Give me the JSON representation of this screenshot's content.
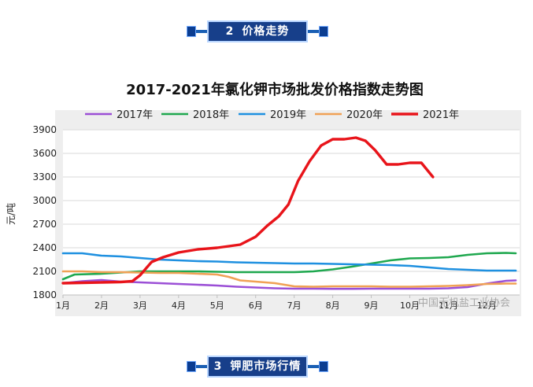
{
  "sections": {
    "top": {
      "number": "2",
      "title": "价格走势"
    },
    "bottom": {
      "number": "3",
      "title": "钾肥市场行情"
    }
  },
  "watermark": "中国无机盐工业协会",
  "chart_data": {
    "type": "line",
    "title": "2017-2021年氯化钾市场批发价格指数走势图",
    "ylabel": "元/吨",
    "xlabel": "",
    "ylim": [
      1800,
      3900
    ],
    "yticks": [
      1800,
      2100,
      2400,
      2700,
      3000,
      3300,
      3600,
      3900
    ],
    "xlim": [
      1,
      12.85
    ],
    "xticks": [
      {
        "v": 1,
        "label": "1月"
      },
      {
        "v": 2,
        "label": "2月"
      },
      {
        "v": 3,
        "label": "3月"
      },
      {
        "v": 4,
        "label": "4月"
      },
      {
        "v": 5,
        "label": "5月"
      },
      {
        "v": 6,
        "label": "6月"
      },
      {
        "v": 7,
        "label": "7月"
      },
      {
        "v": 8,
        "label": "8月"
      },
      {
        "v": 9,
        "label": "9月"
      },
      {
        "v": 10,
        "label": "10月"
      },
      {
        "v": 11,
        "label": "11月"
      },
      {
        "v": 12,
        "label": "12月"
      }
    ],
    "grid": true,
    "legend_position": "top",
    "series": [
      {
        "name": "2017年",
        "color": "#9b4fd6",
        "x": [
          1,
          1.5,
          2,
          2.5,
          3,
          3.5,
          4,
          4.5,
          5,
          5.5,
          6,
          6.5,
          7,
          7.5,
          8,
          8.5,
          9,
          9.5,
          10,
          10.5,
          11,
          11.5,
          12,
          12.5,
          12.75
        ],
        "values": [
          1950,
          1975,
          1990,
          1970,
          1960,
          1950,
          1940,
          1930,
          1920,
          1905,
          1895,
          1885,
          1880,
          1880,
          1878,
          1878,
          1880,
          1880,
          1880,
          1880,
          1885,
          1900,
          1945,
          1980,
          1985
        ]
      },
      {
        "name": "2018年",
        "color": "#1fa84f",
        "x": [
          1,
          1.3,
          2,
          2.5,
          3,
          3.5,
          4,
          4.5,
          5,
          5.5,
          6,
          6.5,
          7,
          7.5,
          8,
          8.5,
          9,
          9.5,
          10,
          10.5,
          11,
          11.5,
          12,
          12.5,
          12.75
        ],
        "values": [
          2000,
          2060,
          2070,
          2085,
          2100,
          2100,
          2100,
          2100,
          2095,
          2090,
          2090,
          2090,
          2090,
          2100,
          2125,
          2160,
          2200,
          2240,
          2265,
          2270,
          2280,
          2310,
          2330,
          2335,
          2330
        ]
      },
      {
        "name": "2019年",
        "color": "#1e90e0",
        "x": [
          1,
          1.5,
          2,
          2.5,
          3,
          3.5,
          4,
          4.5,
          5,
          5.5,
          6,
          6.5,
          7,
          7.5,
          8,
          8.5,
          9,
          9.5,
          10,
          10.5,
          11,
          11.5,
          12,
          12.5,
          12.75
        ],
        "values": [
          2330,
          2330,
          2300,
          2290,
          2270,
          2250,
          2240,
          2230,
          2225,
          2215,
          2210,
          2205,
          2200,
          2200,
          2195,
          2190,
          2185,
          2180,
          2170,
          2150,
          2130,
          2120,
          2110,
          2110,
          2110
        ]
      },
      {
        "name": "2020年",
        "color": "#f0a155",
        "x": [
          1,
          1.5,
          2,
          2.5,
          3,
          3.5,
          4,
          4.5,
          5,
          5.3,
          5.6,
          6,
          6.5,
          7,
          7.5,
          8,
          8.5,
          9,
          9.5,
          10,
          10.5,
          11,
          11.5,
          12,
          12.5,
          12.75
        ],
        "values": [
          2100,
          2100,
          2090,
          2090,
          2085,
          2080,
          2080,
          2070,
          2060,
          2030,
          1985,
          1970,
          1950,
          1910,
          1905,
          1910,
          1910,
          1910,
          1905,
          1905,
          1910,
          1915,
          1925,
          1940,
          1945,
          1945
        ]
      },
      {
        "name": "2021年",
        "color": "#e8141a",
        "x": [
          1,
          1.5,
          2,
          2.5,
          2.8,
          3,
          3.3,
          3.6,
          4,
          4.5,
          5,
          5.3,
          5.6,
          6,
          6.3,
          6.6,
          6.85,
          7.1,
          7.4,
          7.7,
          8,
          8.3,
          8.6,
          8.85,
          9.1,
          9.4,
          9.7,
          10,
          10.3,
          10.6
        ],
        "values": [
          1950,
          1955,
          1960,
          1965,
          1975,
          2050,
          2220,
          2280,
          2340,
          2380,
          2400,
          2420,
          2440,
          2540,
          2680,
          2800,
          2950,
          3250,
          3500,
          3700,
          3780,
          3780,
          3800,
          3760,
          3640,
          3460,
          3460,
          3480,
          3480,
          3300
        ]
      }
    ]
  }
}
